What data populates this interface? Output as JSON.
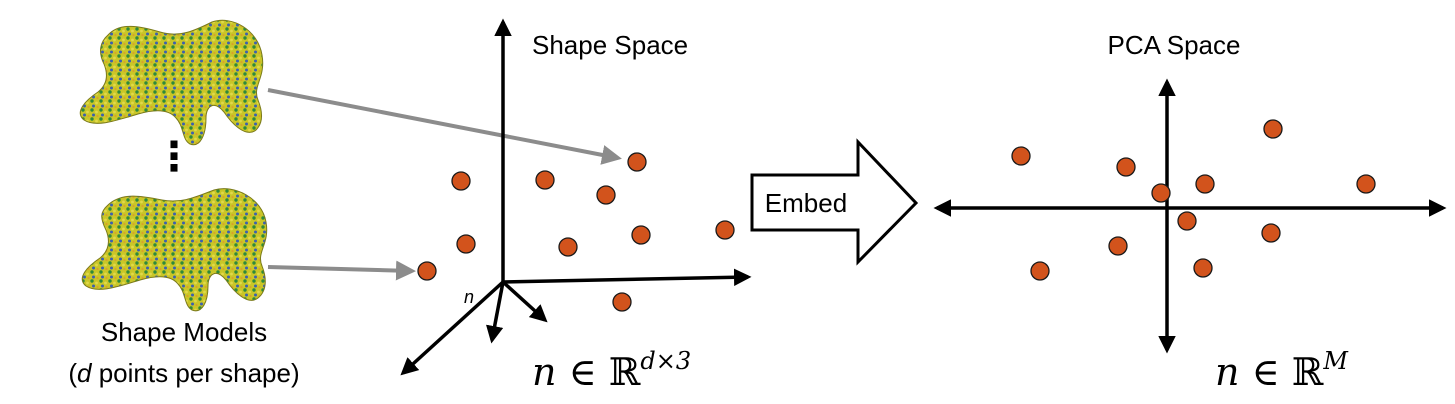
{
  "labels": {
    "shape_space_title": "Shape Space",
    "pca_space_title": "PCA Space",
    "embed": "Embed",
    "shape_models": "Shape Models",
    "points_per_shape_var": "d",
    "points_per_shape_rest": " points per shape)",
    "paren_open": "(",
    "ellipsis": "⋮",
    "axis_n": "n"
  },
  "math": {
    "shape_space": {
      "var": "n",
      "in": " ∈ ",
      "set": "ℝ",
      "sup": "d×3"
    },
    "pca_space": {
      "var": "n",
      "in": " ∈ ",
      "set": "ℝ",
      "sup": "M"
    }
  },
  "colors": {
    "dot_fill": "#d2531c",
    "dot_stroke": "#1a1a1a",
    "axis": "#000000",
    "pointer_arrow": "#8c8c8c",
    "mesh_base": "#c8c72a"
  }
}
